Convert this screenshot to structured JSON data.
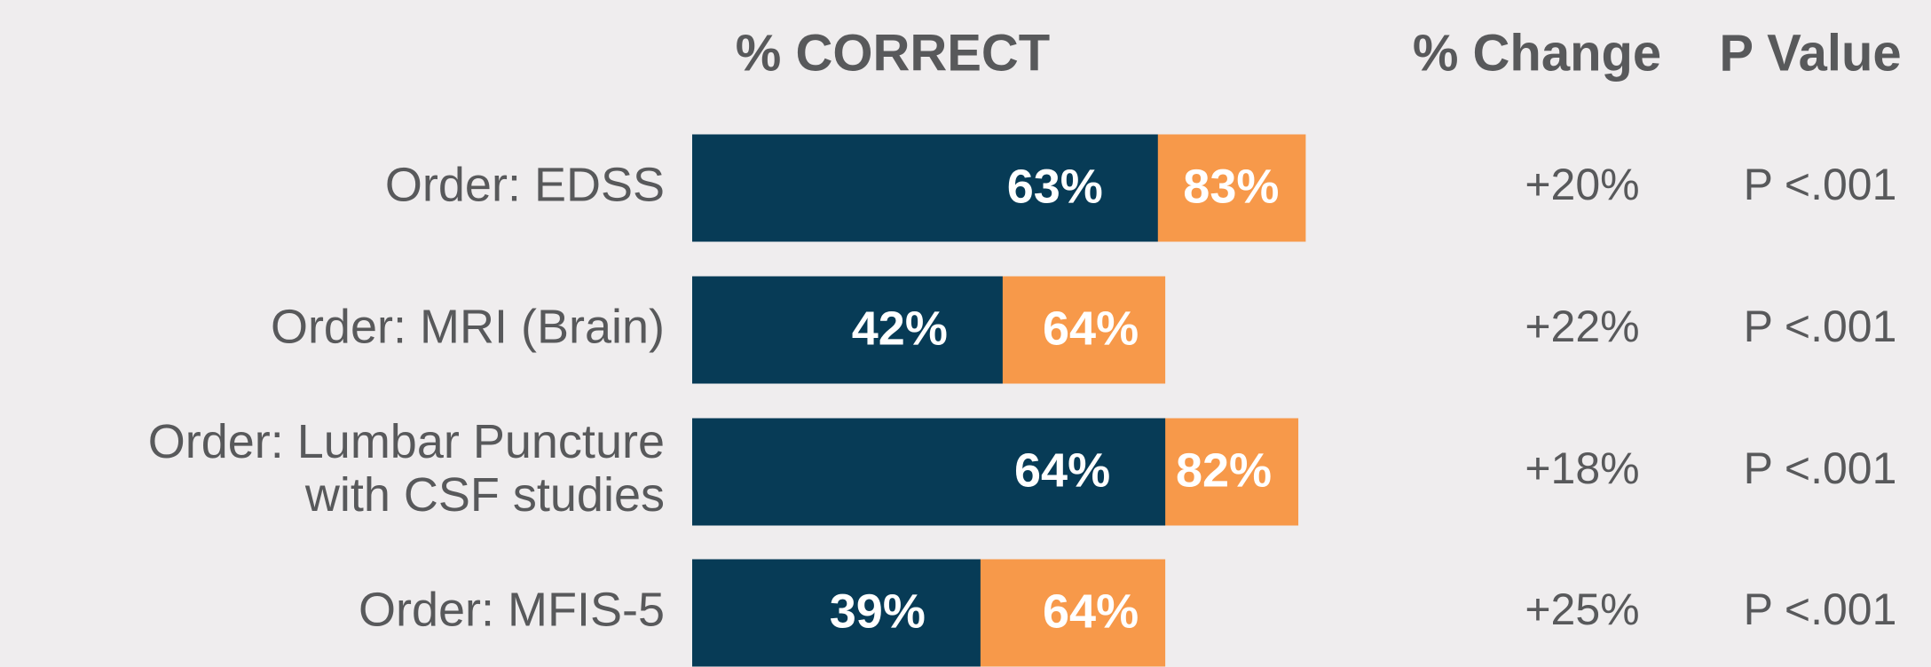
{
  "chart_data": {
    "type": "bar",
    "orientation": "horizontal",
    "title": "% CORRECT",
    "categories": [
      "Order: EDSS",
      "Order: MRI (Brain)",
      "Order: Lumbar Puncture\nwith CSF studies",
      "Order: MFIS-5"
    ],
    "series": [
      {
        "color": "#f7994a",
        "values": [
          83,
          64,
          82,
          64
        ],
        "value_labels": [
          "83%",
          "64%",
          "82%",
          "64%"
        ]
      },
      {
        "color": "#073b56",
        "values": [
          63,
          42,
          64,
          39
        ],
        "value_labels": [
          "63%",
          "42%",
          "64%",
          "39%"
        ]
      }
    ],
    "xlim": [
      0,
      100
    ],
    "columns": [
      {
        "header": "% Change",
        "values": [
          "+20%",
          "+22%",
          "+18%",
          "+25%"
        ]
      },
      {
        "header": "P Value",
        "values": [
          "P <.001",
          "P <.001",
          "P <.001",
          "P <.001"
        ]
      }
    ]
  }
}
